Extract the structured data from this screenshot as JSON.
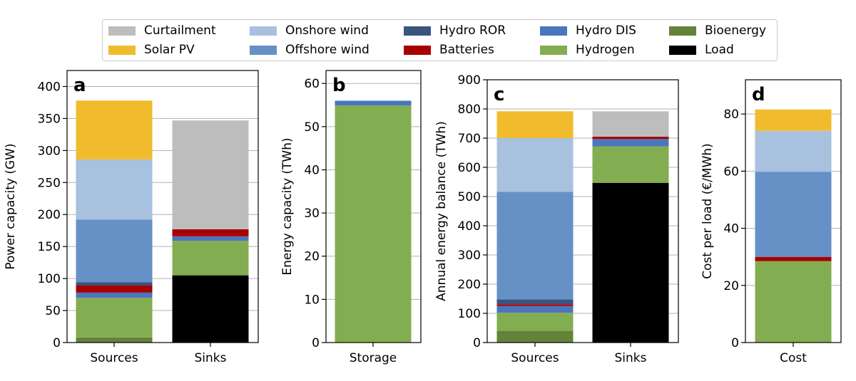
{
  "colors": {
    "Curtailment": "#bdbdbd",
    "Solar PV": "#f0bc2e",
    "Onshore wind": "#a7c1de",
    "Offshore wind": "#6591c6",
    "Hydro ROR": "#3a5580",
    "Batteries": "#a70000",
    "Hydro DIS": "#4a76bd",
    "Hydrogen": "#83ad51",
    "Bioenergy": "#648239",
    "Load": "#000000"
  },
  "legend": {
    "items": [
      "Curtailment",
      "Solar PV",
      "Onshore wind",
      "Offshore wind",
      "Hydro ROR",
      "Batteries",
      "Hydro DIS",
      "Hydrogen",
      "Bioenergy",
      "Load"
    ]
  },
  "chart_data": [
    {
      "type": "bar",
      "stacked": true,
      "panel_label": "a",
      "ylabel": "Power capacity (GW)",
      "ylim": [
        0,
        425
      ],
      "yticks": [
        0,
        50,
        100,
        150,
        200,
        250,
        300,
        350,
        400
      ],
      "categories": [
        "Sources",
        "Sinks"
      ],
      "stacks": [
        [
          {
            "name": "Bioenergy",
            "value": 8
          },
          {
            "name": "Hydrogen",
            "value": 62
          },
          {
            "name": "Hydro DIS",
            "value": 8
          },
          {
            "name": "Batteries",
            "value": 11
          },
          {
            "name": "Hydro ROR",
            "value": 5
          },
          {
            "name": "Offshore wind",
            "value": 98
          },
          {
            "name": "Onshore wind",
            "value": 94
          },
          {
            "name": "Solar PV",
            "value": 92
          }
        ],
        [
          {
            "name": "Load",
            "value": 105
          },
          {
            "name": "Hydrogen",
            "value": 54
          },
          {
            "name": "Hydro DIS",
            "value": 7
          },
          {
            "name": "Batteries",
            "value": 11
          },
          {
            "name": "Curtailment",
            "value": 170
          }
        ]
      ]
    },
    {
      "type": "bar",
      "stacked": true,
      "panel_label": "b",
      "ylabel": "Energy capacity (TWh)",
      "ylim": [
        0,
        63
      ],
      "yticks": [
        0,
        10,
        20,
        30,
        40,
        50,
        60
      ],
      "categories": [
        "Storage"
      ],
      "stacks": [
        [
          {
            "name": "Hydrogen",
            "value": 54.9
          },
          {
            "name": "Hydro DIS",
            "value": 1.1
          }
        ]
      ]
    },
    {
      "type": "bar",
      "stacked": true,
      "panel_label": "c",
      "ylabel": "Annual energy balance (TWh)",
      "ylim": [
        0,
        900
      ],
      "yticks": [
        0,
        100,
        200,
        300,
        400,
        500,
        600,
        700,
        800,
        900
      ],
      "categories": [
        "Sources",
        "Sinks"
      ],
      "stacks": [
        [
          {
            "name": "Bioenergy",
            "value": 40
          },
          {
            "name": "Hydrogen",
            "value": 62
          },
          {
            "name": "Hydro DIS",
            "value": 23
          },
          {
            "name": "Batteries",
            "value": 6
          },
          {
            "name": "Hydro ROR",
            "value": 17
          },
          {
            "name": "Offshore wind",
            "value": 368
          },
          {
            "name": "Onshore wind",
            "value": 184
          },
          {
            "name": "Solar PV",
            "value": 92
          }
        ],
        [
          {
            "name": "Load",
            "value": 547
          },
          {
            "name": "Hydrogen",
            "value": 125
          },
          {
            "name": "Hydro DIS",
            "value": 25
          },
          {
            "name": "Batteries",
            "value": 8
          },
          {
            "name": "Curtailment",
            "value": 87
          }
        ]
      ]
    },
    {
      "type": "bar",
      "stacked": true,
      "panel_label": "d",
      "ylabel": "Cost per load (€/MWh)",
      "ylim": [
        0,
        92
      ],
      "yticks": [
        0,
        20,
        40,
        60,
        80
      ],
      "categories": [
        "Cost"
      ],
      "stacks": [
        [
          {
            "name": "Hydrogen",
            "value": 28.5
          },
          {
            "name": "Batteries",
            "value": 1.5
          },
          {
            "name": "Offshore wind",
            "value": 29.8
          },
          {
            "name": "Onshore wind",
            "value": 14.3
          },
          {
            "name": "Solar PV",
            "value": 7.5
          }
        ]
      ]
    }
  ]
}
